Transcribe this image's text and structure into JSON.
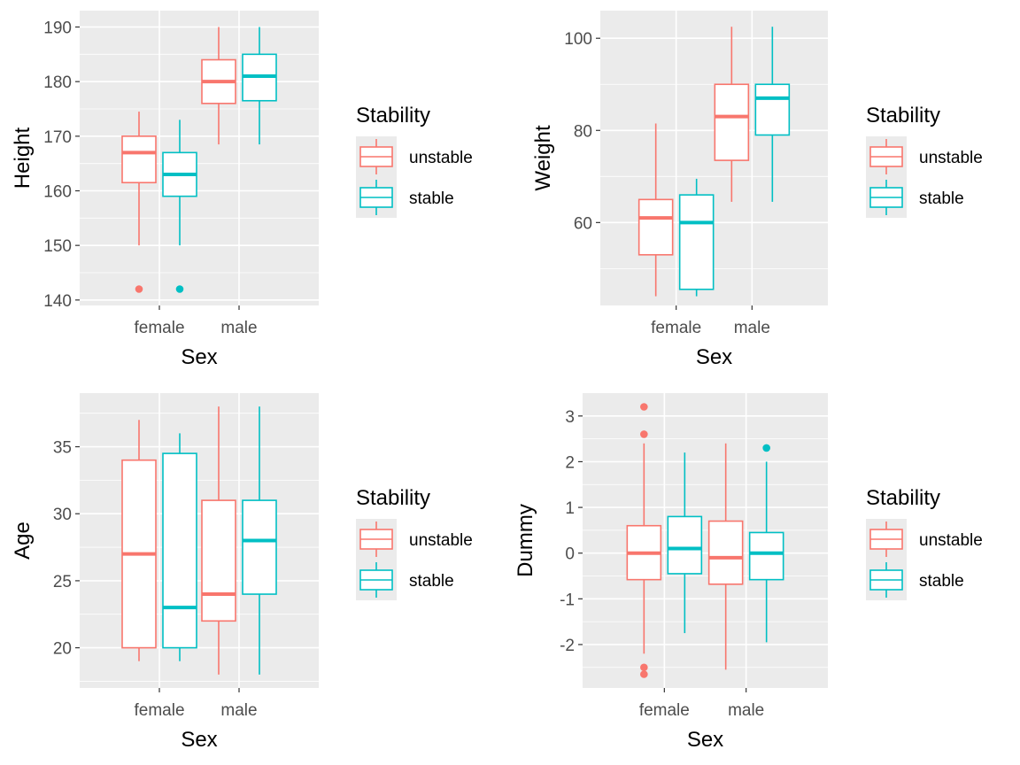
{
  "colors": {
    "unstable": "#F8766D",
    "stable": "#00BFC4",
    "panel": "#EBEBEB",
    "grid": "#FFFFFF",
    "tick": "#4D4D4D"
  },
  "chart_data": [
    {
      "type": "boxplot",
      "xlabel": "Sex",
      "ylabel": "Height",
      "categories": [
        "female",
        "male"
      ],
      "ylim": [
        139,
        193
      ],
      "yticks": [
        140,
        150,
        160,
        170,
        180,
        190
      ],
      "legend": {
        "title": "Stability",
        "entries": [
          "unstable",
          "stable"
        ],
        "placement": "right"
      },
      "series": [
        {
          "name": "unstable",
          "boxes": [
            {
              "category": "female",
              "min": 150,
              "q1": 161.5,
              "median": 167,
              "q3": 170,
              "max": 174.5,
              "outliers": [
                142
              ]
            },
            {
              "category": "male",
              "min": 168.5,
              "q1": 176,
              "median": 180,
              "q3": 184,
              "max": 190,
              "outliers": []
            }
          ]
        },
        {
          "name": "stable",
          "boxes": [
            {
              "category": "female",
              "min": 150,
              "q1": 159,
              "median": 163,
              "q3": 167,
              "max": 173,
              "outliers": [
                142
              ]
            },
            {
              "category": "male",
              "min": 168.5,
              "q1": 176.5,
              "median": 181,
              "q3": 185,
              "max": 190,
              "outliers": []
            }
          ]
        }
      ]
    },
    {
      "type": "boxplot",
      "xlabel": "Sex",
      "ylabel": "Weight",
      "categories": [
        "female",
        "male"
      ],
      "ylim": [
        42,
        106
      ],
      "yticks": [
        60,
        80,
        100
      ],
      "legend": {
        "title": "Stability",
        "entries": [
          "unstable",
          "stable"
        ],
        "placement": "right"
      },
      "series": [
        {
          "name": "unstable",
          "boxes": [
            {
              "category": "female",
              "min": 44,
              "q1": 53,
              "median": 61,
              "q3": 65,
              "max": 81.5,
              "outliers": []
            },
            {
              "category": "male",
              "min": 64.5,
              "q1": 73.5,
              "median": 83,
              "q3": 90,
              "max": 102.5,
              "outliers": []
            }
          ]
        },
        {
          "name": "stable",
          "boxes": [
            {
              "category": "female",
              "min": 44,
              "q1": 45.5,
              "median": 60,
              "q3": 66,
              "max": 69.5,
              "outliers": []
            },
            {
              "category": "male",
              "min": 64.5,
              "q1": 79,
              "median": 87,
              "q3": 90,
              "max": 102.5,
              "outliers": []
            }
          ]
        }
      ]
    },
    {
      "type": "boxplot",
      "xlabel": "Sex",
      "ylabel": "Age",
      "categories": [
        "female",
        "male"
      ],
      "ylim": [
        17,
        39
      ],
      "yticks": [
        20,
        25,
        30,
        35
      ],
      "legend": {
        "title": "Stability",
        "entries": [
          "unstable",
          "stable"
        ],
        "placement": "right"
      },
      "series": [
        {
          "name": "unstable",
          "boxes": [
            {
              "category": "female",
              "min": 19,
              "q1": 20,
              "median": 27,
              "q3": 34,
              "max": 37,
              "outliers": []
            },
            {
              "category": "male",
              "min": 18,
              "q1": 22,
              "median": 24,
              "q3": 31,
              "max": 38,
              "outliers": []
            }
          ]
        },
        {
          "name": "stable",
          "boxes": [
            {
              "category": "female",
              "min": 19,
              "q1": 20,
              "median": 23,
              "q3": 34.5,
              "max": 36,
              "outliers": []
            },
            {
              "category": "male",
              "min": 18,
              "q1": 24,
              "median": 28,
              "q3": 31,
              "max": 38,
              "outliers": []
            }
          ]
        }
      ]
    },
    {
      "type": "boxplot",
      "xlabel": "Sex",
      "ylabel": "Dummy",
      "categories": [
        "female",
        "male"
      ],
      "ylim": [
        -2.95,
        3.5
      ],
      "yticks": [
        -2,
        -1,
        0,
        1,
        2,
        3
      ],
      "legend": {
        "title": "Stability",
        "entries": [
          "unstable",
          "stable"
        ],
        "placement": "right"
      },
      "series": [
        {
          "name": "unstable",
          "boxes": [
            {
              "category": "female",
              "min": -2.2,
              "q1": -0.58,
              "median": 0,
              "q3": 0.6,
              "max": 2.4,
              "outliers": [
                3.2,
                2.6,
                -2.5,
                -2.65
              ]
            },
            {
              "category": "male",
              "min": -2.55,
              "q1": -0.68,
              "median": -0.1,
              "q3": 0.7,
              "max": 2.4,
              "outliers": []
            }
          ]
        },
        {
          "name": "stable",
          "boxes": [
            {
              "category": "female",
              "min": -1.75,
              "q1": -0.45,
              "median": 0.1,
              "q3": 0.8,
              "max": 2.2,
              "outliers": []
            },
            {
              "category": "male",
              "min": -1.95,
              "q1": -0.58,
              "median": 0,
              "q3": 0.45,
              "max": 2.0,
              "outliers": [
                2.3
              ]
            }
          ]
        }
      ]
    }
  ]
}
